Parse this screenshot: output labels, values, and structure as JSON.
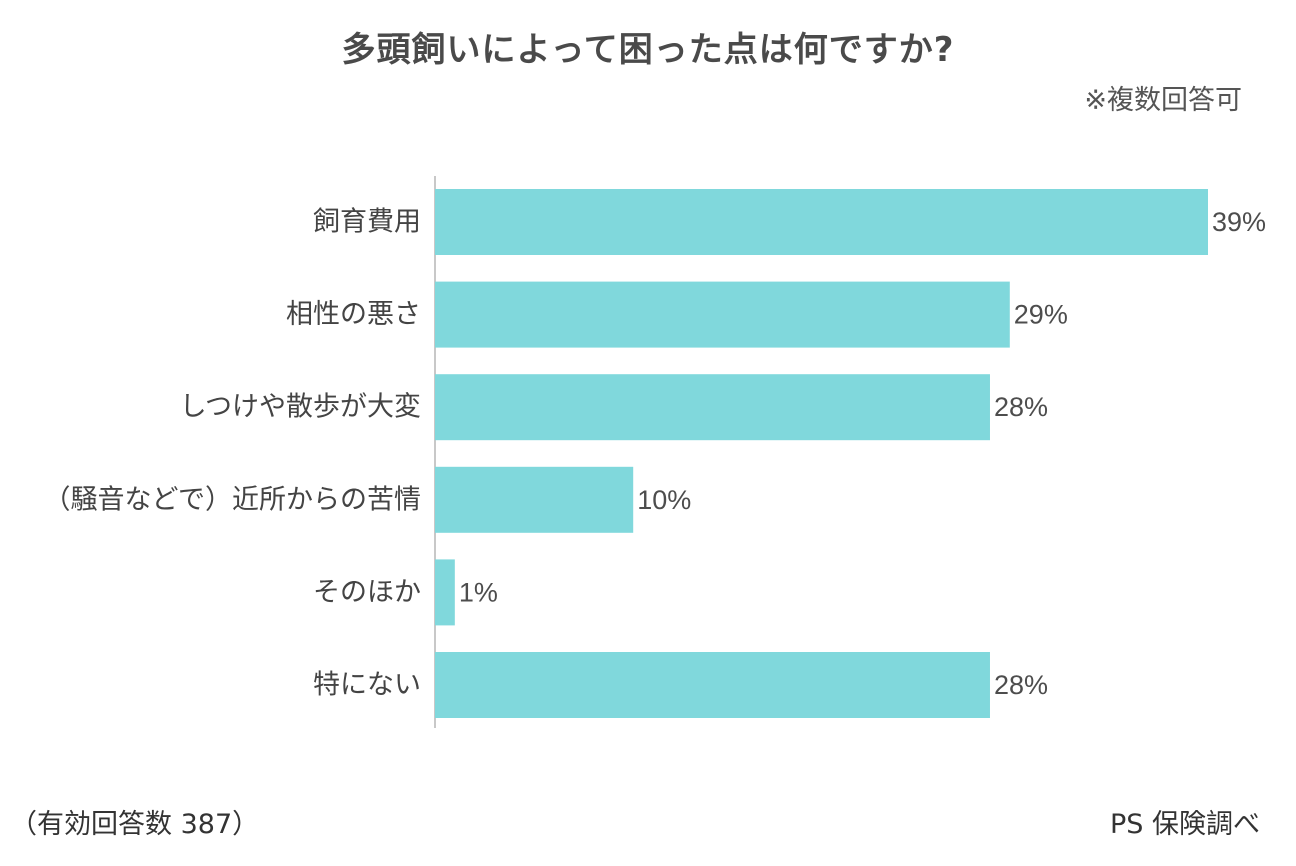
{
  "chart_data": {
    "type": "bar",
    "orientation": "horizontal",
    "title": "多頭飼いによって困った点は何ですか?",
    "subtitle": "※複数回答可",
    "categories": [
      "飼育費用",
      "相性の悪さ",
      "しつけや散歩が大変",
      "（騒音などで）近所からの苦情",
      "そのほか",
      "特にない"
    ],
    "values": [
      39,
      29,
      28,
      10,
      1,
      28
    ],
    "value_labels": [
      "39%",
      "29%",
      "28%",
      "10%",
      "1%",
      "28%"
    ],
    "unit": "%",
    "xlim": [
      0,
      39
    ],
    "grid": false,
    "legend": "none",
    "bar_color": "#80d8dc",
    "axis_color": "#c8c8c8"
  },
  "footer": {
    "sample_note": "（有効回答数 387）",
    "source": "PS 保険調べ"
  }
}
